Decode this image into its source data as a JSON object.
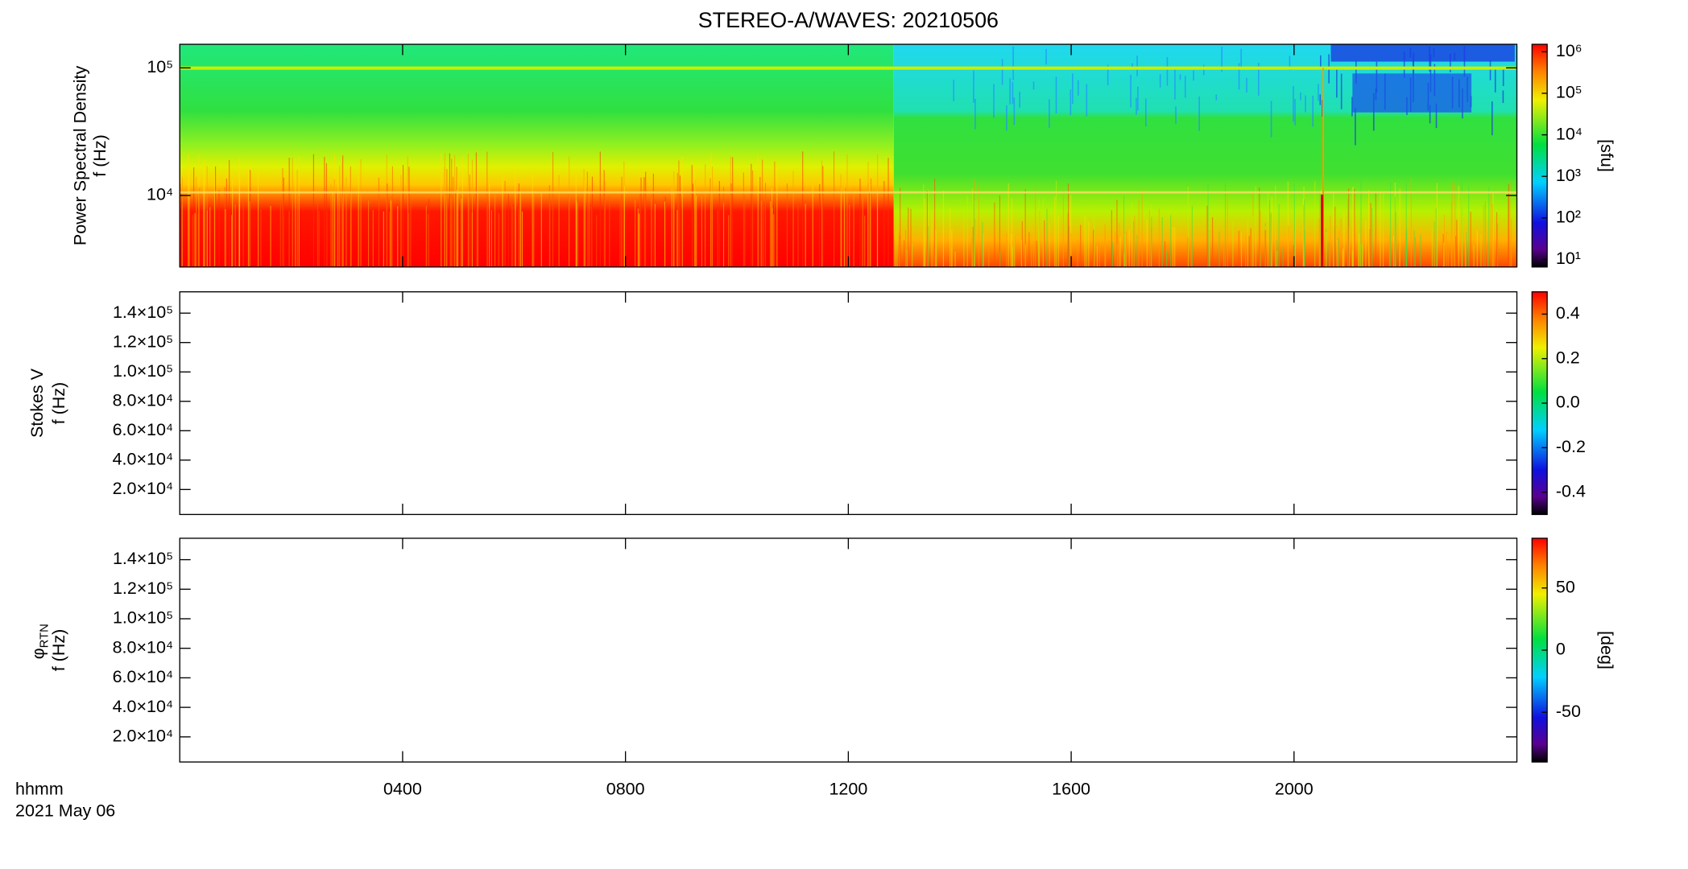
{
  "title": "STEREO-A/WAVES: 20210506",
  "chart_data": [
    {
      "type": "heatmap",
      "ylabel": [
        "Power Spectral Density",
        "f (Hz)"
      ],
      "log_y": true,
      "ylim": [
        2750,
        153000
      ],
      "yticks": [
        {
          "value": 10000,
          "label": "10⁴"
        },
        {
          "value": 100000,
          "label": "10⁵"
        }
      ],
      "colorbar": {
        "log": true,
        "lim": [
          6.6,
          1510000
        ],
        "label": "[sfu]",
        "ticks": [
          {
            "value": 10,
            "label": "10¹"
          },
          {
            "value": 100,
            "label": "10²"
          },
          {
            "value": 1000,
            "label": "10³"
          },
          {
            "value": 10000,
            "label": "10⁴"
          },
          {
            "value": 100000,
            "label": "10⁵"
          },
          {
            "value": 1000000,
            "label": "10⁶"
          }
        ]
      }
    },
    {
      "type": "heatmap",
      "ylabel": [
        "Stokes V",
        "f (Hz)"
      ],
      "log_y": false,
      "ylim": [
        3000,
        154500
      ],
      "yticks": [
        {
          "value": 20000,
          "label": "2.0×10⁴"
        },
        {
          "value": 40000,
          "label": "4.0×10⁴"
        },
        {
          "value": 60000,
          "label": "6.0×10⁴"
        },
        {
          "value": 80000,
          "label": "8.0×10⁴"
        },
        {
          "value": 100000,
          "label": "1.0×10⁵"
        },
        {
          "value": 120000,
          "label": "1.2×10⁵"
        },
        {
          "value": 140000,
          "label": "1.4×10⁵"
        }
      ],
      "colorbar": {
        "log": false,
        "lim": [
          -0.5,
          0.5
        ],
        "ticks": [
          {
            "value": -0.4,
            "label": "-0.4"
          },
          {
            "value": -0.2,
            "label": "-0.2"
          },
          {
            "value": 0,
            "label": "0.0"
          },
          {
            "value": 0.2,
            "label": "0.2"
          },
          {
            "value": 0.4,
            "label": "0.4"
          }
        ]
      }
    },
    {
      "type": "heatmap",
      "ylabel_symbol": "φ",
      "ylabel_subscript": "RTN",
      "ylabel": [
        "f (Hz)"
      ],
      "log_y": false,
      "ylim": [
        3000,
        154500
      ],
      "yticks": [
        {
          "value": 20000,
          "label": "2.0×10⁴"
        },
        {
          "value": 40000,
          "label": "4.0×10⁴"
        },
        {
          "value": 60000,
          "label": "6.0×10⁴"
        },
        {
          "value": 80000,
          "label": "8.0×10⁴"
        },
        {
          "value": 100000,
          "label": "1.0×10⁵"
        },
        {
          "value": 120000,
          "label": "1.2×10⁵"
        },
        {
          "value": 140000,
          "label": "1.4×10⁵"
        }
      ],
      "colorbar": {
        "log": false,
        "lim": [
          -90,
          90
        ],
        "label": "[deg]",
        "ticks": [
          -50,
          0,
          50
        ]
      },
      "xlabel": [
        "hhmm",
        "2021 May 06"
      ],
      "xlim": [
        0,
        24
      ],
      "xticks": [
        {
          "value": 4,
          "label": "0400"
        },
        {
          "value": 8,
          "label": "0800"
        },
        {
          "value": 12,
          "label": "1200"
        },
        {
          "value": 16,
          "label": "1600"
        },
        {
          "value": 20,
          "label": "2000"
        }
      ]
    }
  ]
}
